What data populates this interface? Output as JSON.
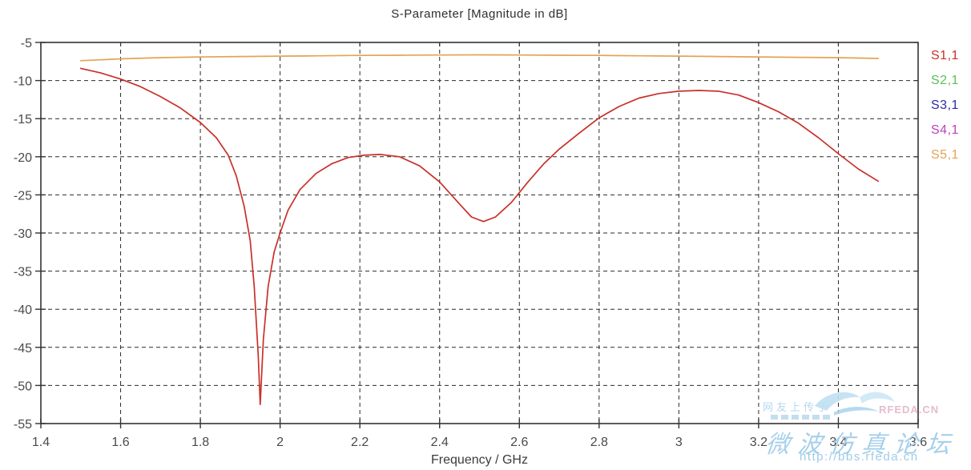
{
  "chart": {
    "title": "S-Parameter [Magnitude in dB]",
    "xlabel": "Frequency / GHz",
    "x_ticks": [
      1.4,
      1.6,
      1.8,
      2.0,
      2.2,
      2.4,
      2.6,
      2.8,
      3.0,
      3.2,
      3.4,
      3.6
    ],
    "x_tick_labels": [
      "1.4",
      "1.6",
      "1.8",
      "2",
      "2.2",
      "2.4",
      "2.6",
      "2.8",
      "3",
      "3.2",
      "3.4",
      "3.6"
    ],
    "y_ticks": [
      -5,
      -10,
      -15,
      -20,
      -25,
      -30,
      -35,
      -40,
      -45,
      -50,
      -55
    ],
    "y_tick_labels": [
      "-5",
      "-10",
      "-15",
      "-20",
      "-25",
      "-30",
      "-35",
      "-40",
      "-45",
      "-50",
      "-55"
    ]
  },
  "chart_data": {
    "type": "line",
    "title": "S-Parameter [Magnitude in dB]",
    "xlabel": "Frequency / GHz",
    "ylabel": "",
    "xlim": [
      1.4,
      3.6
    ],
    "ylim": [
      -55,
      -5
    ],
    "grid": "dashed",
    "legend_position": "outside-top-right",
    "series": [
      {
        "name": "S1,1",
        "color": "#c9302a",
        "visible_curve": true,
        "x": [
          1.5,
          1.55,
          1.6,
          1.65,
          1.7,
          1.75,
          1.8,
          1.84,
          1.87,
          1.89,
          1.91,
          1.925,
          1.935,
          1.945,
          1.95,
          1.958,
          1.97,
          1.985,
          2.0,
          2.02,
          2.05,
          2.09,
          2.13,
          2.17,
          2.21,
          2.25,
          2.3,
          2.35,
          2.4,
          2.45,
          2.48,
          2.51,
          2.54,
          2.58,
          2.62,
          2.66,
          2.7,
          2.75,
          2.8,
          2.85,
          2.9,
          2.95,
          3.0,
          3.05,
          3.1,
          3.15,
          3.2,
          3.25,
          3.3,
          3.35,
          3.4,
          3.45,
          3.5
        ],
        "y": [
          -8.4,
          -9.0,
          -9.8,
          -10.8,
          -12.1,
          -13.6,
          -15.5,
          -17.5,
          -19.8,
          -22.5,
          -26.5,
          -31,
          -37,
          -46,
          -52.5,
          -44,
          -37,
          -32.5,
          -30,
          -27,
          -24.3,
          -22.2,
          -20.9,
          -20.1,
          -19.8,
          -19.7,
          -20.0,
          -21.2,
          -23.3,
          -26.2,
          -27.9,
          -28.5,
          -27.9,
          -26,
          -23.4,
          -21,
          -19.0,
          -16.9,
          -14.9,
          -13.4,
          -12.3,
          -11.7,
          -11.4,
          -11.3,
          -11.4,
          -11.9,
          -12.9,
          -14.1,
          -15.6,
          -17.5,
          -19.6,
          -21.6,
          -23.2
        ]
      },
      {
        "name": "S2,1",
        "color": "#58c158",
        "visible_curve": false,
        "x": [],
        "y": []
      },
      {
        "name": "S3,1",
        "color": "#2b2ba6",
        "visible_curve": false,
        "x": [],
        "y": []
      },
      {
        "name": "S4,1",
        "color": "#ba43ba",
        "visible_curve": false,
        "x": [],
        "y": []
      },
      {
        "name": "S5,1",
        "color": "#e2a455",
        "visible_curve": true,
        "x": [
          1.5,
          1.6,
          1.7,
          1.8,
          1.9,
          2.0,
          2.1,
          2.2,
          2.3,
          2.4,
          2.5,
          2.6,
          2.7,
          2.8,
          2.9,
          3.0,
          3.1,
          3.2,
          3.3,
          3.4,
          3.5
        ],
        "y": [
          -7.4,
          -7.15,
          -7.0,
          -6.9,
          -6.85,
          -6.8,
          -6.75,
          -6.7,
          -6.68,
          -6.65,
          -6.63,
          -6.65,
          -6.68,
          -6.7,
          -6.75,
          -6.8,
          -6.85,
          -6.9,
          -6.95,
          -7.0,
          -7.1
        ]
      }
    ]
  },
  "colors": {
    "frame": "#333333",
    "grid": "#2a2a2a",
    "tick_label": "#4a4a4a",
    "title_text": "#2f2f2f"
  },
  "watermark": {
    "uploader_text": "网友上传于",
    "site_name_en": "RFEDA.CN",
    "site_name_cn": "微波仿真论坛",
    "url": "http://bbs.rfeda.cn"
  }
}
